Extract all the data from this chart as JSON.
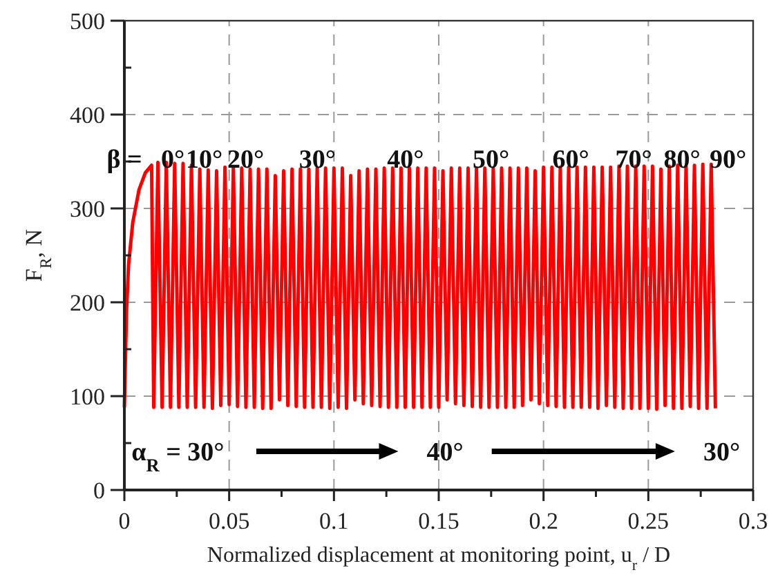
{
  "chart_data": {
    "type": "line",
    "xlabel": "Normalized displacement at monitoring point, u$_{r}$ / D",
    "ylabel": "F$_{R}$, N",
    "xlim": [
      0,
      0.3
    ],
    "ylim": [
      0,
      500
    ],
    "xticks": [
      0,
      {
        "value": 0.025,
        "label": null
      },
      0.05,
      {
        "value": 0.075,
        "label": null
      },
      0.1,
      {
        "value": 0.125,
        "label": null
      },
      0.15,
      {
        "value": 0.175,
        "label": null
      },
      0.2,
      {
        "value": 0.225,
        "label": null
      },
      0.25,
      {
        "value": 0.275,
        "label": null
      },
      0.3
    ],
    "yticks": [
      0,
      {
        "value": 50,
        "label": null
      },
      100,
      {
        "value": 150,
        "label": null
      },
      200,
      {
        "value": 250,
        "label": null
      },
      300,
      {
        "value": 350,
        "label": null
      },
      400,
      {
        "value": 450,
        "label": null
      },
      500
    ],
    "grid": true,
    "line_style": "solid",
    "series": [
      {
        "color": "#ff0000",
        "x": [
          0,
          0.001,
          0.002,
          0.004,
          0.007,
          0.01,
          0.013,
          0.014,
          0.016,
          0.018,
          0.02,
          0.022,
          0.024,
          0.026,
          0.028,
          0.03,
          0.032,
          0.034,
          0.036,
          0.038,
          0.04,
          0.042,
          0.044,
          0.046,
          0.048,
          0.05,
          0.052,
          0.054,
          0.056,
          0.058,
          0.06,
          0.062,
          0.064,
          0.066,
          0.068,
          0.07,
          0.072,
          0.074,
          0.076,
          0.078,
          0.08,
          0.082,
          0.084,
          0.086,
          0.088,
          0.09,
          0.092,
          0.094,
          0.096,
          0.098,
          0.1,
          0.102,
          0.104,
          0.106,
          0.108,
          0.11,
          0.112,
          0.114,
          0.116,
          0.118,
          0.12,
          0.122,
          0.124,
          0.126,
          0.128,
          0.13,
          0.132,
          0.134,
          0.136,
          0.138,
          0.14,
          0.142,
          0.144,
          0.146,
          0.148,
          0.15,
          0.152,
          0.154,
          0.156,
          0.158,
          0.16,
          0.162,
          0.164,
          0.166,
          0.168,
          0.17,
          0.172,
          0.174,
          0.176,
          0.178,
          0.18,
          0.182,
          0.184,
          0.186,
          0.188,
          0.19,
          0.192,
          0.194,
          0.196,
          0.198,
          0.2,
          0.202,
          0.204,
          0.206,
          0.208,
          0.21,
          0.212,
          0.214,
          0.216,
          0.218,
          0.22,
          0.222,
          0.224,
          0.226,
          0.228,
          0.23,
          0.232,
          0.234,
          0.236,
          0.238,
          0.24,
          0.242,
          0.244,
          0.246,
          0.248,
          0.25,
          0.252,
          0.254,
          0.256,
          0.258,
          0.26,
          0.262,
          0.264,
          0.266,
          0.268,
          0.27,
          0.272,
          0.274,
          0.276,
          0.278,
          0.28,
          0.282
        ],
        "values": [
          88,
          190,
          240,
          285,
          320,
          338,
          346,
          88,
          349,
          88,
          349,
          88,
          348,
          88,
          348,
          88,
          346,
          88,
          342,
          88,
          341,
          87,
          340,
          90,
          344,
          91,
          344,
          89,
          343,
          88,
          342,
          88,
          342,
          87,
          342,
          87,
          335,
          96,
          340,
          90,
          342,
          89,
          342,
          88,
          342,
          88,
          343,
          88,
          343,
          87,
          343,
          88,
          343,
          87,
          335,
          96,
          340,
          92,
          342,
          90,
          342,
          89,
          343,
          88,
          343,
          88,
          343,
          88,
          343,
          88,
          343,
          88,
          343,
          88,
          343,
          88,
          340,
          96,
          343,
          92,
          343,
          90,
          343,
          89,
          343,
          88,
          343,
          88,
          343,
          88,
          343,
          88,
          343,
          88,
          343,
          90,
          343,
          96,
          340,
          92,
          344,
          90,
          344,
          89,
          344,
          88,
          344,
          88,
          344,
          88,
          344,
          88,
          344,
          87,
          344,
          90,
          344,
          88,
          345,
          87,
          345,
          87,
          345,
          87,
          345,
          87,
          345,
          86,
          342,
          90,
          345,
          87,
          346,
          87,
          345,
          89,
          346,
          87,
          347,
          87,
          347,
          87
        ]
      }
    ],
    "annotations": [
      "β =",
      "0°",
      "10°",
      "20°",
      "30°",
      "40°",
      "50°",
      "60°",
      "70°",
      "80°",
      "90°",
      "α$_{R}$ = 30°",
      "40°",
      "30°"
    ]
  }
}
